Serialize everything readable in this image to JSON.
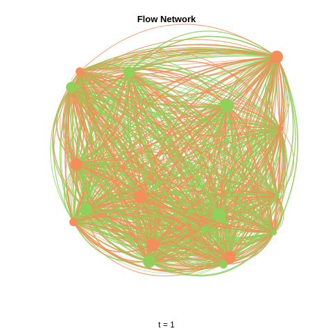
{
  "title": "Flow Network",
  "caption": "t = 1",
  "colors": {
    "orange": "#f58e5a",
    "green": "#92d05c"
  },
  "network": {
    "type": "flow-network",
    "node_groups": [
      "orange",
      "green"
    ]
  }
}
